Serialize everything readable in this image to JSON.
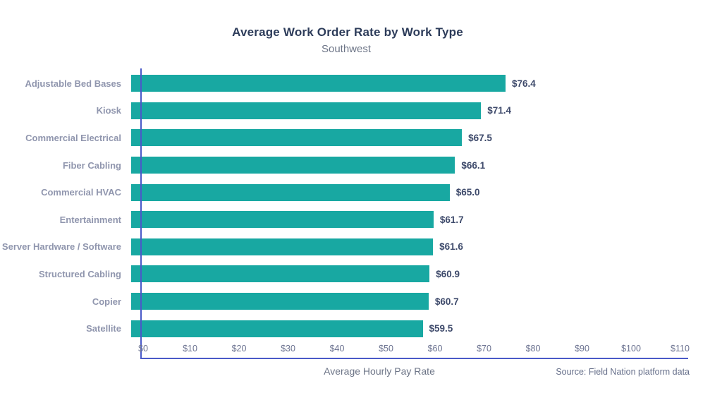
{
  "chart_data": {
    "type": "bar",
    "orientation": "horizontal",
    "title": "Average Work Order Rate by Work Type",
    "subtitle": "Southwest",
    "xlabel": "Average Hourly Pay Rate",
    "source": "Source: Field Nation platform data",
    "categories": [
      "Adjustable Bed Bases",
      "Kiosk",
      "Commercial Electrical",
      "Fiber Cabling",
      "Commercial HVAC",
      "Entertainment",
      "Server Hardware / Software",
      "Structured Cabling",
      "Copier",
      "Satellite"
    ],
    "values": [
      76.4,
      71.4,
      67.5,
      66.1,
      65.0,
      61.7,
      61.6,
      60.9,
      60.7,
      59.5
    ],
    "value_labels": [
      "$76.4",
      "$71.4",
      "$67.5",
      "$66.1",
      "$65.0",
      "$61.7",
      "$61.6",
      "$60.9",
      "$60.7",
      "$59.5"
    ],
    "xlim": [
      0,
      110
    ],
    "xticks": [
      0,
      10,
      20,
      30,
      40,
      50,
      60,
      70,
      80,
      90,
      100,
      110
    ],
    "xtick_labels": [
      "$0",
      "$10",
      "$20",
      "$30",
      "$40",
      "$50",
      "$60",
      "$70",
      "$80",
      "$90",
      "$100",
      "$110"
    ],
    "grid": false,
    "legend": false,
    "bar_color": "#18a8a2",
    "axis_color": "#4a5ac8",
    "title_color": "#2d3c5a",
    "category_label_color": "#9096ae",
    "value_label_color": "#3e4a6b"
  }
}
